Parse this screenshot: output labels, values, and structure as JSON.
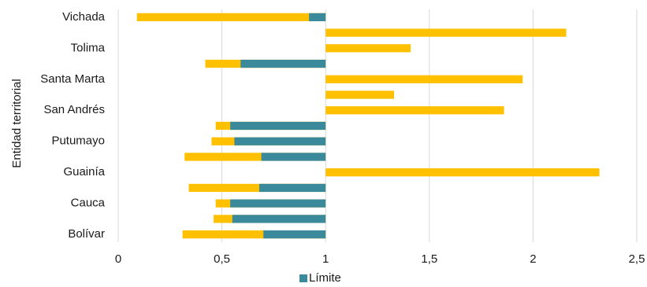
{
  "chart_data": {
    "type": "bar",
    "orientation": "horizontal",
    "ylabel": "Entidad territorial",
    "xlabel": "",
    "xlim": [
      0,
      2.5
    ],
    "xticks": [
      "0",
      "0,5",
      "1",
      "1,5",
      "2",
      "2,5"
    ],
    "reference_value": 1,
    "grid": true,
    "legend_position": "bottom",
    "legend_entries": [
      "Límite"
    ],
    "colors": {
      "limit": "#3A8A9C",
      "value": "#FFC000",
      "grid": "#d9d9d9"
    },
    "rows": [
      {
        "label": "Bolívar",
        "value": 0.31,
        "limit_start": 0.7
      },
      {
        "label": "",
        "value": 0.46,
        "limit_start": 0.55
      },
      {
        "label": "Cauca",
        "value": 0.47,
        "limit_start": 0.54
      },
      {
        "label": "",
        "value": 0.34,
        "limit_start": 0.68
      },
      {
        "label": "Guainía",
        "value": 2.32,
        "limit_start": null
      },
      {
        "label": "",
        "value": 0.32,
        "limit_start": 0.69
      },
      {
        "label": "Putumayo",
        "value": 0.45,
        "limit_start": 0.56
      },
      {
        "label": "",
        "value": 0.47,
        "limit_start": 0.54
      },
      {
        "label": "San Andrés",
        "value": 1.86,
        "limit_start": null
      },
      {
        "label": "",
        "value": 1.33,
        "limit_start": null
      },
      {
        "label": "Santa Marta",
        "value": 1.95,
        "limit_start": null
      },
      {
        "label": "",
        "value": 0.42,
        "limit_start": 0.59
      },
      {
        "label": "Tolima",
        "value": 1.41,
        "limit_start": null
      },
      {
        "label": "",
        "value": 2.16,
        "limit_start": null
      },
      {
        "label": "Vichada",
        "value": 0.09,
        "limit_start": 0.92
      }
    ]
  }
}
